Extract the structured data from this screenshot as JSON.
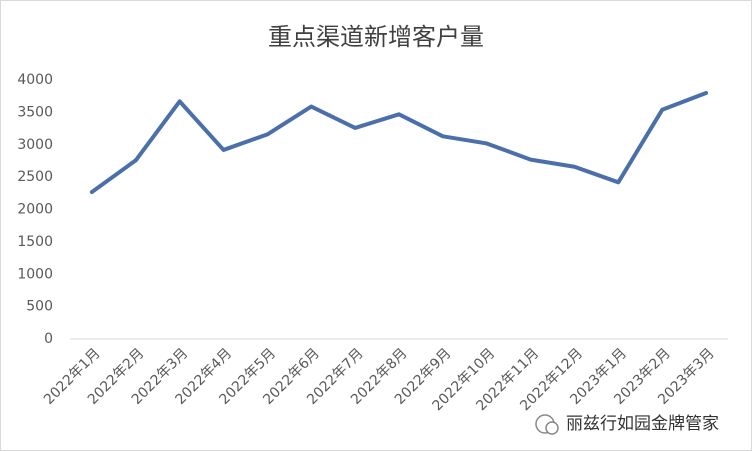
{
  "chart_data": {
    "type": "line",
    "title": "重点渠道新增客户量",
    "categories": [
      "2022年1月",
      "2022年2月",
      "2022年3月",
      "2022年4月",
      "2022年5月",
      "2022年6月",
      "2022年7月",
      "2022年8月",
      "2022年9月",
      "2022年10月",
      "2022年11月",
      "2022年12月",
      "2023年1月",
      "2023年2月",
      "2023年3月"
    ],
    "values": [
      2270,
      2760,
      3670,
      2920,
      3160,
      3590,
      3260,
      3470,
      3130,
      3020,
      2770,
      2660,
      2420,
      3540,
      3800
    ],
    "color": "#4a6faa",
    "ylim": [
      0,
      4000
    ],
    "yticks": [
      0,
      500,
      1000,
      1500,
      2000,
      2500,
      3000,
      3500,
      4000
    ],
    "grid": false
  },
  "watermark": "丽兹行如园金牌管家"
}
